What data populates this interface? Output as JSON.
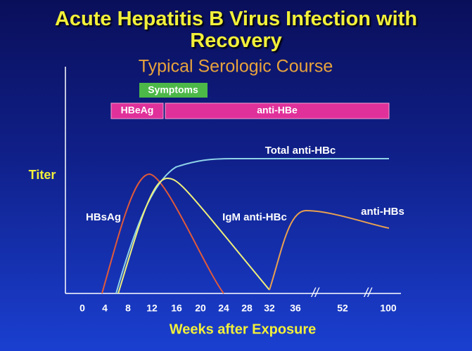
{
  "title": "Acute Hepatitis B Virus Infection with Recovery",
  "subtitle": "Typical Serologic Course",
  "bars": [
    "Symptoms",
    "HBeAg",
    "anti-HBe"
  ],
  "curves": [
    "Total anti-HBc",
    "HBsAg",
    "IgM anti-HBc",
    "anti-HBs"
  ],
  "y_axis_label": "Titer",
  "x_axis_label": "Weeks after Exposure",
  "x_ticks": [
    0,
    4,
    8,
    12,
    16,
    20,
    24,
    28,
    32,
    36,
    52,
    100
  ]
}
